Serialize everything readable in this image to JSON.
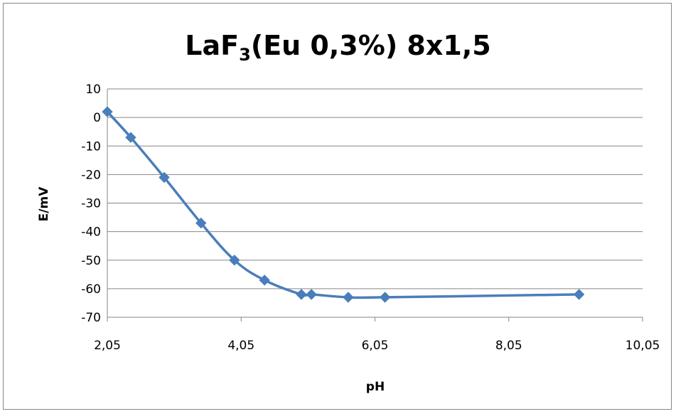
{
  "chart_data": {
    "type": "line",
    "title": {
      "prefix": "LaF",
      "subscript": "3",
      "suffix": "(Eu 0,3%) 8x1,5"
    },
    "xlabel": "pH",
    "ylabel": "E/mV",
    "xlim": [
      2.05,
      10.05
    ],
    "ylim": [
      -70,
      10
    ],
    "xticks": [
      2.05,
      4.05,
      6.05,
      8.05,
      10.05
    ],
    "xtick_labels": [
      "2,05",
      "4,05",
      "6,05",
      "8,05",
      "10,05"
    ],
    "yticks": [
      10,
      0,
      -10,
      -20,
      -30,
      -40,
      -50,
      -60,
      -70
    ],
    "ytick_labels": [
      "10",
      "0",
      "-10",
      "-20",
      "-30",
      "-40",
      "-50",
      "-60",
      "-70"
    ],
    "grid": "horizontal",
    "legend": "none",
    "marker": "diamond",
    "series": [
      {
        "color": "#4a7ebb",
        "x": [
          2.05,
          2.4,
          2.9,
          3.45,
          3.95,
          4.4,
          4.95,
          5.1,
          5.65,
          6.2,
          9.1
        ],
        "y": [
          2,
          -7,
          -21,
          -37,
          -50,
          -57,
          -62,
          -62,
          -63,
          -63,
          -62
        ]
      }
    ]
  }
}
